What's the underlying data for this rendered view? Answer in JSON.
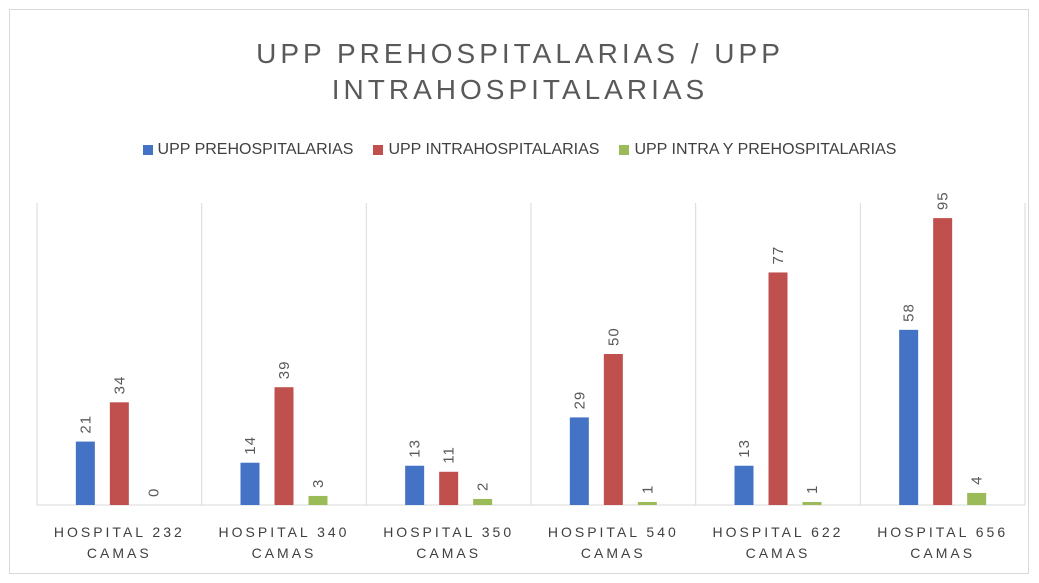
{
  "chart_data": {
    "type": "bar",
    "title": "UPP PREHOSPITALARIAS /  UPP INTRAHOSPITALARIAS",
    "categories": [
      "HOSPITAL 232 CAMAS",
      "HOSPITAL 340 CAMAS",
      "HOSPITAL 350 CAMAS",
      "HOSPITAL 540 CAMAS",
      "HOSPITAL 622 CAMAS",
      "HOSPITAL 656 CAMAS"
    ],
    "series": [
      {
        "name": "UPP PREHOSPITALARIAS",
        "color": "#4472c4",
        "values": [
          21,
          14,
          13,
          29,
          13,
          58
        ]
      },
      {
        "name": "UPP INTRAHOSPITALARIAS",
        "color": "#c0504d",
        "values": [
          34,
          39,
          11,
          50,
          77,
          95
        ]
      },
      {
        "name": "UPP INTRA Y PREHOSPITALARIAS",
        "color": "#9bbb59",
        "values": [
          0,
          3,
          2,
          1,
          1,
          4
        ]
      }
    ],
    "ylim": [
      0,
      100
    ],
    "legend": "top"
  }
}
